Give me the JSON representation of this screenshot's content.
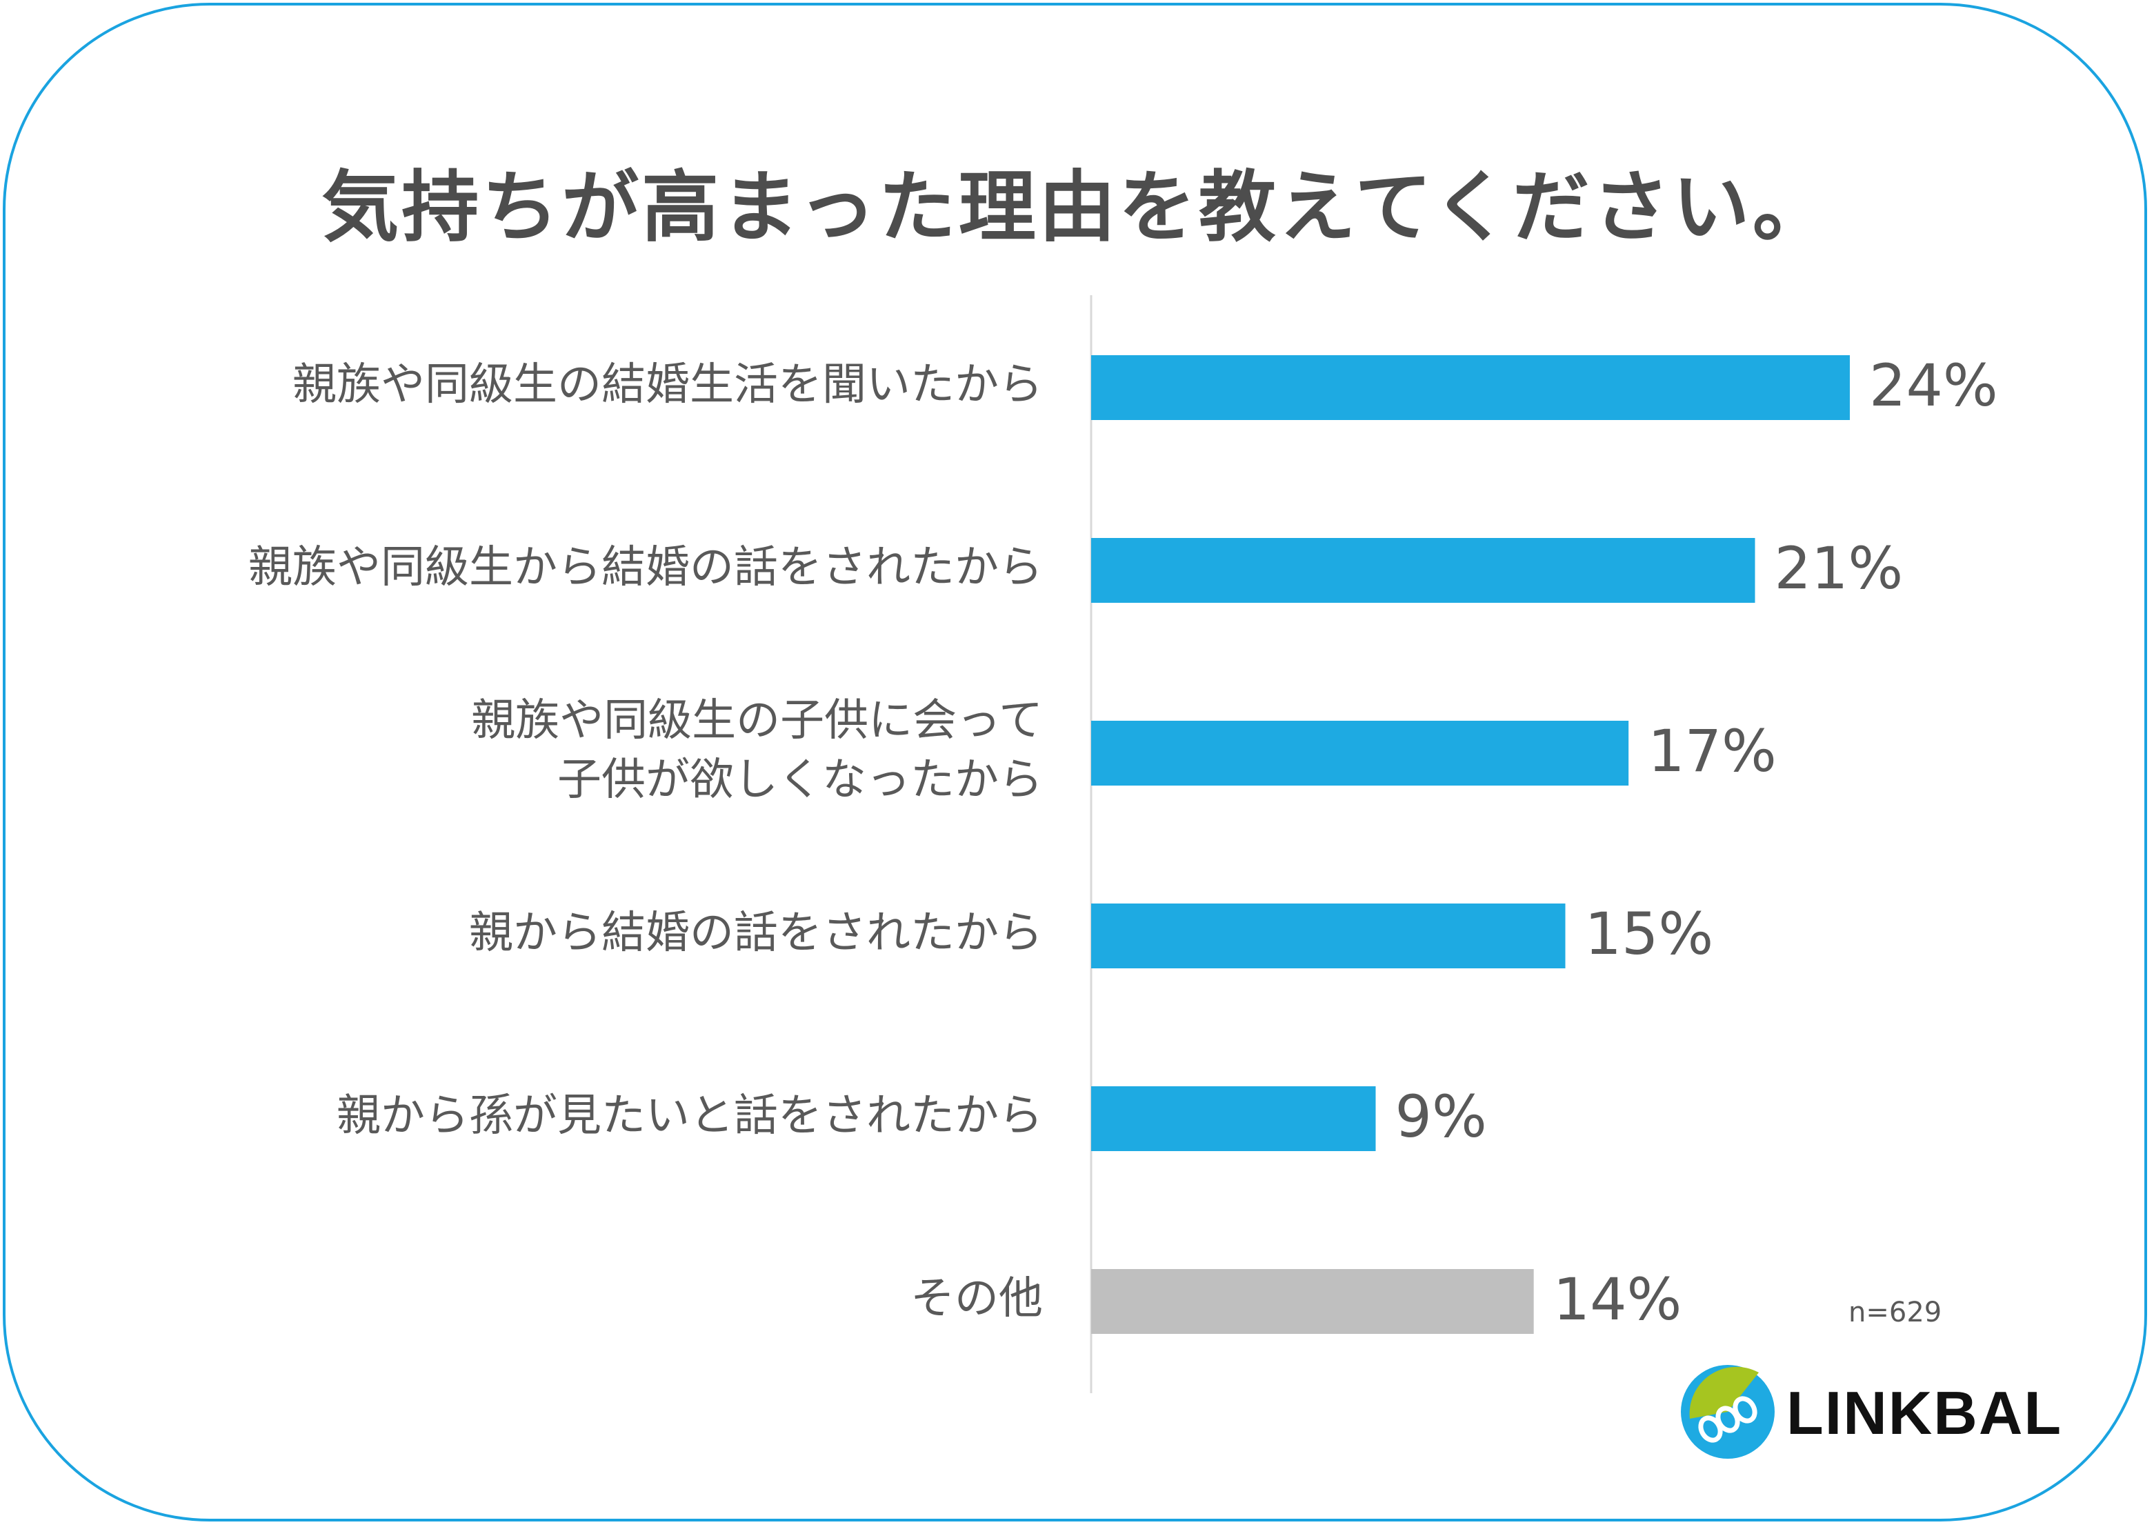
{
  "chart_data": {
    "type": "bar",
    "orientation": "horizontal",
    "title": "気持ちが高まった理由を教えてください。",
    "categories": [
      "親族や同級生の結婚生活を聞いたから",
      "親族や同級生から結婚の話をされたから",
      "親族や同級生の子供に会って\n子供が欲しくなったから",
      "親から結婚の話をされたから",
      "親から孫が見たいと話をされたから",
      "その他"
    ],
    "values": [
      24,
      21,
      17,
      15,
      9,
      14
    ],
    "value_labels": [
      "24%",
      "21%",
      "17%",
      "15%",
      "9%",
      "14%"
    ],
    "unit": "%",
    "xlim": [
      0,
      29
    ],
    "colors": [
      "#1eaae2",
      "#1eaae2",
      "#1eaae2",
      "#1eaae2",
      "#1eaae2",
      "#bfbfbf"
    ],
    "note": "n=629",
    "grid": false
  },
  "brand": {
    "name": "LINKBAL",
    "colors": {
      "accent": "#1aa3e0",
      "bar": "#1eaae2",
      "other_bar": "#bfbfbf",
      "logo_green": "#a6c520",
      "text": "#595959"
    }
  }
}
